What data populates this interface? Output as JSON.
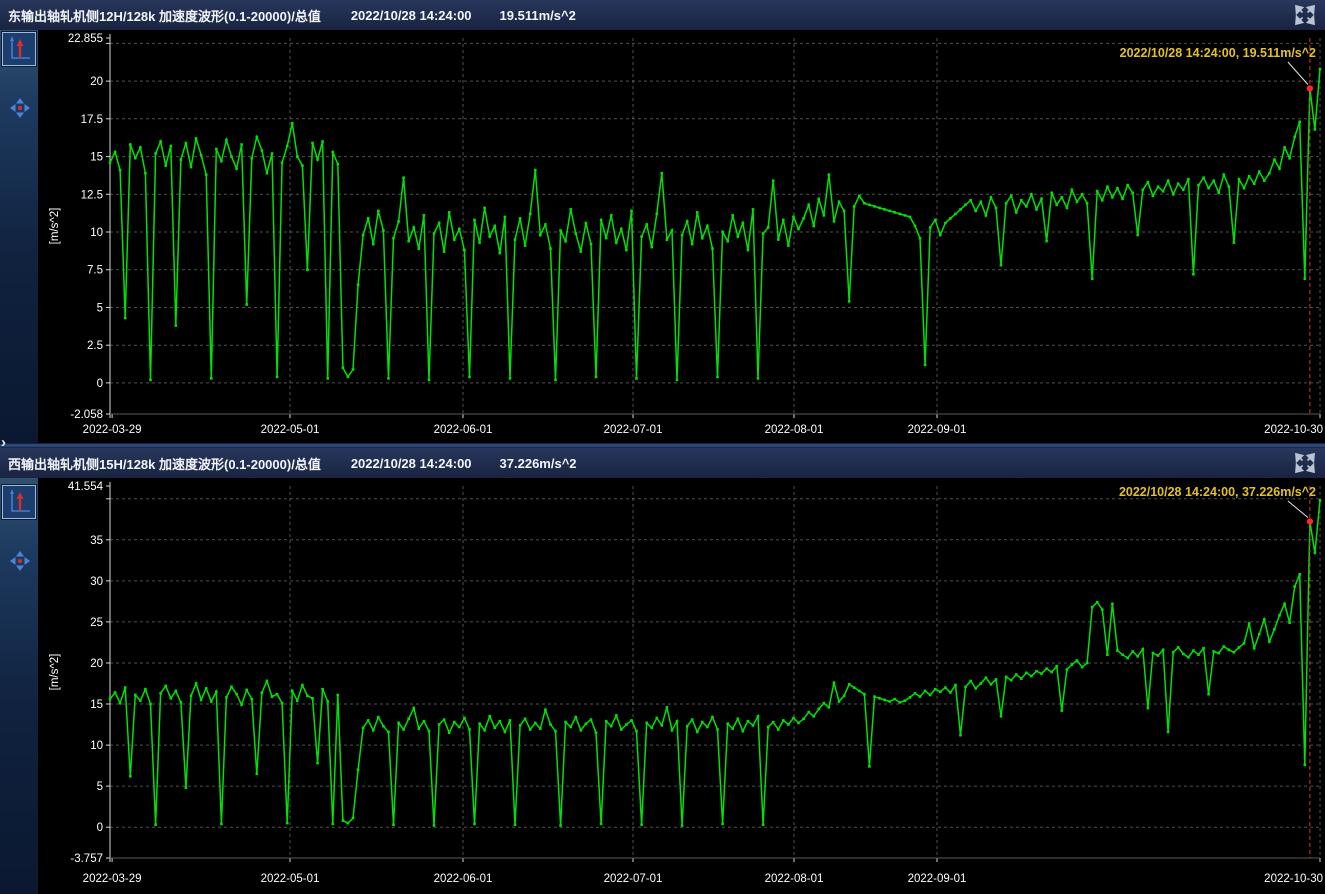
{
  "colors": {
    "background": "#000000",
    "header_bg": "#202c4c",
    "sidebar_bg": "#1c3a60",
    "series_green": "#00e206",
    "annotation_yellow": "#e3c126",
    "cursor_red": "#e03030",
    "grid_gray": "#a0a0a0",
    "axis_white": "#d8d8d8",
    "text_white": "#ffffff",
    "divider_blue": "#2e5086"
  },
  "icons": {
    "expand": "arrows-out-icon",
    "cursor_tool": "axis-cursor-icon",
    "pan_tool": "move-arrows-icon",
    "chevron": "›"
  },
  "panels": [
    {
      "title": "东输出轴轧机侧12H/128k 加速度波形(0.1-20000)/总值",
      "timestamp": "2022/10/28 14:24:00",
      "peak_value": "19.511m/s^2"
    },
    {
      "title": "西输出轴轧机侧15H/128k 加速度波形(0.1-20000)/总值",
      "timestamp": "2022/10/28 14:24:00",
      "peak_value": "37.226m/s^2"
    }
  ],
  "chart_data": [
    {
      "type": "line",
      "title": "东输出轴轧机侧12H/128k 加速度波形(0.1-20000)/总值 trend",
      "ylabel": "[m/s^2]",
      "ylim": [
        -2.058,
        22.855
      ],
      "grid": "dashed",
      "legend": "none",
      "yticks": [
        {
          "v": 22.855,
          "label": "22.855",
          "grid": false
        },
        {
          "v": 22.5,
          "label": "",
          "grid": true
        },
        {
          "v": 20,
          "label": "20",
          "grid": true
        },
        {
          "v": 17.5,
          "label": "17.5",
          "grid": true
        },
        {
          "v": 15,
          "label": "15",
          "grid": true
        },
        {
          "v": 12.5,
          "label": "12.5",
          "grid": true
        },
        {
          "v": 10,
          "label": "10",
          "grid": true
        },
        {
          "v": 7.5,
          "label": "7.5",
          "grid": true
        },
        {
          "v": 5,
          "label": "5",
          "grid": true
        },
        {
          "v": 2.5,
          "label": "2.5",
          "grid": true
        },
        {
          "v": 0,
          "label": "0",
          "grid": true
        },
        {
          "v": -2.058,
          "label": "-2.058",
          "grid": false
        }
      ],
      "xticks": [
        {
          "f": 0.0017,
          "label": "2022-03-29",
          "grid": false
        },
        {
          "f": 0.1488,
          "label": "2022-05-01",
          "grid": true
        },
        {
          "f": 0.2917,
          "label": "2022-06-01",
          "grid": true
        },
        {
          "f": 0.4322,
          "label": "2022-07-01",
          "grid": true
        },
        {
          "f": 0.5653,
          "label": "2022-08-01",
          "grid": true
        },
        {
          "f": 0.6835,
          "label": "2022-09-01",
          "grid": true
        },
        {
          "f": 1.0,
          "label": "2022-10-30",
          "grid": true
        }
      ],
      "cursor": {
        "index": 237,
        "value": 19.511,
        "annotation": "2022/10/28 14:24:00, 19.511m/s^2"
      },
      "series": [
        {
          "name": "acceleration-overall-east",
          "color": "#00e206",
          "values": [
            14.6,
            15.3,
            14.1,
            4.3,
            15.8,
            14.9,
            15.6,
            13.9,
            0.2,
            15.2,
            16.0,
            14.4,
            15.7,
            3.8,
            14.8,
            15.9,
            14.3,
            16.2,
            15.1,
            13.8,
            0.3,
            15.5,
            14.7,
            16.1,
            15.0,
            14.2,
            15.8,
            5.2,
            14.9,
            16.3,
            15.4,
            13.9,
            15.2,
            0.4,
            14.6,
            15.7,
            17.2,
            15.0,
            14.4,
            7.5,
            15.9,
            14.8,
            16.0,
            0.3,
            15.3,
            14.5,
            1.0,
            0.4,
            0.9,
            6.5,
            9.8,
            10.9,
            9.2,
            11.4,
            10.1,
            0.3,
            9.6,
            10.7,
            13.6,
            9.4,
            10.3,
            8.9,
            11.1,
            0.2,
            9.9,
            10.6,
            8.7,
            11.3,
            9.5,
            10.2,
            8.8,
            0.4,
            10.8,
            9.3,
            11.6,
            9.7,
            10.4,
            8.6,
            11.0,
            0.3,
            9.5,
            10.9,
            9.1,
            11.2,
            14.1,
            9.8,
            10.5,
            8.9,
            0.2,
            10.1,
            9.4,
            11.5,
            9.9,
            8.7,
            10.6,
            9.2,
            0.4,
            10.8,
            9.6,
            11.1,
            9.3,
            10.2,
            8.8,
            11.4,
            0.3,
            9.7,
            10.5,
            9.0,
            11.2,
            13.9,
            9.5,
            10.1,
            0.2,
            9.8,
            10.7,
            9.2,
            11.3,
            9.6,
            10.4,
            8.9,
            0.4,
            10.0,
            9.4,
            11.1,
            9.7,
            10.6,
            8.8,
            11.5,
            0.3,
            9.9,
            10.3,
            13.4,
            9.5,
            10.8,
            9.1,
            11.0,
            10.2,
            10.9,
            11.8,
            10.4,
            12.2,
            11.1,
            13.8,
            10.7,
            12.0,
            11.4,
            5.4,
            11.7,
            12.4,
            11.9,
            11.8,
            11.7,
            11.6,
            11.5,
            11.4,
            11.3,
            11.2,
            11.1,
            11.0,
            10.4,
            9.6,
            1.2,
            10.3,
            10.8,
            9.8,
            10.6,
            10.9,
            11.2,
            11.5,
            11.8,
            12.1,
            11.4,
            12.0,
            11.1,
            12.3,
            11.6,
            7.8,
            11.9,
            12.4,
            11.3,
            12.1,
            11.7,
            12.5,
            11.5,
            12.2,
            9.4,
            12.6,
            11.8,
            12.3,
            11.6,
            12.8,
            12.0,
            12.5,
            11.9,
            6.9,
            12.7,
            12.1,
            13.0,
            12.3,
            12.9,
            12.2,
            13.1,
            12.6,
            9.8,
            12.8,
            13.3,
            12.4,
            13.0,
            12.7,
            13.4,
            12.5,
            13.2,
            12.8,
            13.5,
            7.2,
            13.1,
            13.6,
            12.9,
            13.4,
            12.6,
            13.8,
            13.0,
            9.3,
            13.5,
            12.9,
            13.7,
            13.2,
            14.0,
            13.4,
            13.9,
            14.8,
            14.2,
            15.6,
            14.9,
            16.3,
            17.3,
            6.9,
            19.511,
            16.8,
            20.8
          ]
        }
      ]
    },
    {
      "type": "line",
      "title": "西输出轴轧机侧15H/128k 加速度波形(0.1-20000)/总值 trend",
      "ylabel": "[m/s^2]",
      "ylim": [
        -3.757,
        41.554
      ],
      "grid": "dashed",
      "legend": "none",
      "yticks": [
        {
          "v": 41.554,
          "label": "41.554",
          "grid": false
        },
        {
          "v": 40,
          "label": "",
          "grid": true
        },
        {
          "v": 35,
          "label": "35",
          "grid": true
        },
        {
          "v": 30,
          "label": "30",
          "grid": true
        },
        {
          "v": 25,
          "label": "25",
          "grid": true
        },
        {
          "v": 20,
          "label": "20",
          "grid": true
        },
        {
          "v": 15,
          "label": "15",
          "grid": true
        },
        {
          "v": 10,
          "label": "10",
          "grid": true
        },
        {
          "v": 5,
          "label": "5",
          "grid": true
        },
        {
          "v": 0,
          "label": "0",
          "grid": true
        },
        {
          "v": -3.757,
          "label": "-3.757",
          "grid": false
        }
      ],
      "xticks": [
        {
          "f": 0.0017,
          "label": "2022-03-29",
          "grid": false
        },
        {
          "f": 0.1488,
          "label": "2022-05-01",
          "grid": true
        },
        {
          "f": 0.2917,
          "label": "2022-06-01",
          "grid": true
        },
        {
          "f": 0.4322,
          "label": "2022-07-01",
          "grid": true
        },
        {
          "f": 0.5653,
          "label": "2022-08-01",
          "grid": true
        },
        {
          "f": 0.6835,
          "label": "2022-09-01",
          "grid": true
        },
        {
          "f": 1.0,
          "label": "2022-10-30",
          "grid": true
        }
      ],
      "cursor": {
        "index": 237,
        "value": 37.226,
        "annotation": "2022/10/28 14:24:00, 37.226m/s^2"
      },
      "series": [
        {
          "name": "acceleration-overall-west",
          "color": "#00e206",
          "values": [
            15.6,
            16.4,
            15.1,
            17.0,
            6.2,
            16.1,
            15.4,
            16.8,
            15.0,
            0.3,
            16.3,
            17.2,
            15.7,
            16.6,
            15.2,
            4.8,
            16.0,
            17.5,
            15.5,
            16.9,
            15.3,
            16.5,
            0.4,
            15.8,
            17.1,
            16.2,
            14.9,
            16.7,
            15.6,
            6.5,
            16.4,
            17.8,
            15.9,
            16.2,
            15.1,
            0.5,
            16.6,
            15.4,
            17.3,
            16.0,
            15.7,
            7.8,
            16.8,
            15.3,
            0.4,
            16.1,
            0.8,
            0.5,
            1.1,
            7.0,
            12.1,
            13.0,
            11.8,
            13.4,
            12.3,
            11.6,
            0.3,
            12.7,
            11.9,
            13.2,
            14.5,
            12.0,
            12.9,
            11.7,
            0.2,
            12.5,
            13.1,
            11.5,
            12.8,
            12.2,
            13.3,
            11.9,
            0.4,
            12.6,
            11.8,
            13.5,
            12.1,
            12.9,
            11.6,
            13.0,
            0.3,
            12.4,
            13.2,
            11.9,
            12.7,
            12.0,
            14.3,
            12.5,
            11.7,
            0.2,
            12.8,
            12.2,
            13.4,
            11.8,
            12.6,
            13.1,
            11.5,
            0.4,
            12.9,
            12.3,
            13.6,
            11.9,
            12.5,
            13.0,
            11.7,
            0.3,
            12.7,
            12.1,
            13.3,
            12.4,
            14.6,
            11.8,
            12.9,
            0.2,
            12.3,
            13.1,
            11.6,
            12.8,
            12.2,
            13.4,
            11.9,
            0.4,
            12.6,
            12.0,
            13.2,
            11.7,
            12.9,
            12.4,
            13.5,
            0.3,
            12.2,
            12.8,
            11.9,
            13.0,
            12.5,
            13.3,
            12.7,
            13.2,
            14.0,
            13.5,
            14.4,
            15.1,
            14.6,
            17.6,
            15.3,
            16.0,
            17.4,
            17.0,
            16.6,
            16.2,
            7.4,
            15.9,
            15.7,
            15.5,
            15.3,
            15.6,
            15.2,
            15.4,
            15.8,
            16.3,
            15.9,
            16.6,
            16.1,
            16.8,
            16.5,
            17.0,
            16.4,
            17.3,
            11.2,
            17.1,
            17.8,
            16.9,
            17.5,
            18.2,
            17.4,
            18.0,
            13.5,
            18.3,
            17.9,
            18.6,
            18.1,
            18.8,
            18.4,
            19.0,
            18.7,
            19.3,
            18.9,
            19.6,
            14.2,
            19.2,
            19.8,
            20.3,
            19.5,
            20.0,
            26.8,
            27.4,
            26.5,
            21.0,
            27.2,
            21.5,
            21.0,
            20.6,
            21.4,
            20.8,
            21.7,
            14.5,
            21.2,
            20.9,
            21.6,
            11.6,
            21.3,
            21.9,
            21.1,
            20.7,
            21.5,
            21.0,
            21.8,
            16.2,
            21.4,
            21.2,
            22.0,
            21.6,
            21.3,
            21.9,
            22.4,
            24.8,
            21.8,
            23.5,
            25.3,
            22.6,
            24.1,
            25.8,
            27.2,
            24.9,
            29.3,
            30.8,
            7.6,
            37.226,
            33.4,
            39.8
          ]
        }
      ]
    }
  ]
}
